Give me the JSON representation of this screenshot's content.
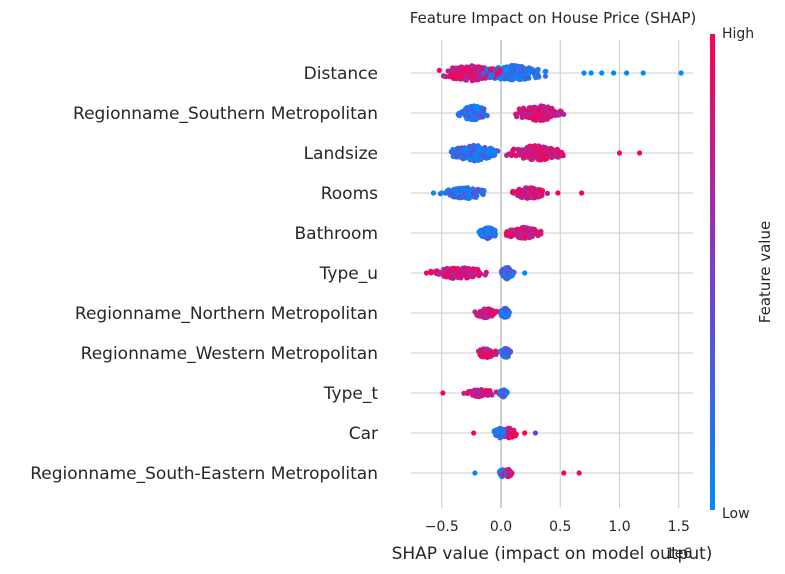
{
  "chart_data": {
    "type": "scatter",
    "title": "Feature Impact on House Price (SHAP)",
    "xlabel": "SHAP value (impact on model output)",
    "x_offset_label": "1e6",
    "x_ticks": [
      -0.5,
      0.0,
      0.5,
      1.0,
      1.5
    ],
    "x_tick_labels": [
      "−0.5",
      "0.0",
      "0.5",
      "1.0",
      "1.5"
    ],
    "xlim": [
      -0.75,
      1.62
    ],
    "grid": true,
    "colorbar": {
      "label": "Feature value",
      "high_label": "High",
      "low_label": "Low",
      "high_color": "#ff0052",
      "mid_color": "#7a3ec8",
      "low_color": "#008bfb"
    },
    "features": [
      {
        "name": "Distance",
        "core_low": [
          -0.25,
          0.45
        ],
        "core_high": [
          -0.6,
          0.1
        ],
        "spread": 8,
        "n": 420,
        "outliers": [
          [
            0.7,
            0.0
          ],
          [
            0.76,
            0.0
          ],
          [
            0.85,
            0.0
          ],
          [
            0.95,
            0.0
          ],
          [
            1.06,
            0.0
          ],
          [
            1.2,
            0.0
          ],
          [
            1.52,
            0.0
          ]
        ]
      },
      {
        "name": "Regionname_Southern Metropolitan",
        "core_low": [
          -0.38,
          -0.08
        ],
        "core_high": [
          0.05,
          0.6
        ],
        "spread": 8,
        "n": 260,
        "outliers": []
      },
      {
        "name": "Landsize",
        "core_low": [
          -0.5,
          0.05
        ],
        "core_high": [
          0.0,
          0.6
        ],
        "spread": 8,
        "n": 360,
        "outliers": [
          [
            1.0,
            1.0
          ],
          [
            1.17,
            1.0
          ]
        ]
      },
      {
        "name": "Rooms",
        "core_low": [
          -0.55,
          -0.05
        ],
        "core_high": [
          0.06,
          0.42
        ],
        "spread": 6,
        "n": 260,
        "outliers": [
          [
            0.48,
            1.0
          ],
          [
            0.68,
            1.0
          ],
          [
            -0.57,
            0.0
          ]
        ]
      },
      {
        "name": "Bathroom",
        "core_low": [
          -0.2,
          -0.02
        ],
        "core_high": [
          0.0,
          0.38
        ],
        "spread": 6,
        "n": 240,
        "outliers": []
      },
      {
        "name": "Type_u",
        "core_low": [
          -0.02,
          0.12
        ],
        "core_high": [
          -0.68,
          -0.05
        ],
        "spread": 6,
        "n": 260,
        "outliers": [
          [
            0.2,
            0.0
          ]
        ]
      },
      {
        "name": "Regionname_Northern Metropolitan",
        "core_low": [
          -0.02,
          0.09
        ],
        "core_high": [
          -0.24,
          -0.02
        ],
        "spread": 5,
        "n": 170,
        "outliers": []
      },
      {
        "name": "Regionname_Western Metropolitan",
        "core_low": [
          -0.02,
          0.1
        ],
        "core_high": [
          -0.23,
          -0.02
        ],
        "spread": 5,
        "n": 170,
        "outliers": []
      },
      {
        "name": "Type_t",
        "core_low": [
          -0.02,
          0.06
        ],
        "core_high": [
          -0.33,
          -0.02
        ],
        "spread": 4,
        "n": 150,
        "outliers": [
          [
            -0.49,
            1.0
          ]
        ]
      },
      {
        "name": "Car",
        "core_low": [
          -0.08,
          0.06
        ],
        "core_high": [
          -0.02,
          0.16
        ],
        "spread": 5,
        "n": 160,
        "outliers": [
          [
            -0.23,
            1.0
          ],
          [
            0.29,
            0.45
          ],
          [
            0.2,
            1.0
          ]
        ]
      },
      {
        "name": "Regionname_South-Eastern Metropolitan",
        "core_low": [
          -0.02,
          0.04
        ],
        "core_high": [
          0.0,
          0.12
        ],
        "spread": 4,
        "n": 110,
        "outliers": [
          [
            -0.22,
            0.0
          ],
          [
            0.53,
            1.0
          ],
          [
            0.66,
            1.0
          ]
        ]
      }
    ]
  }
}
